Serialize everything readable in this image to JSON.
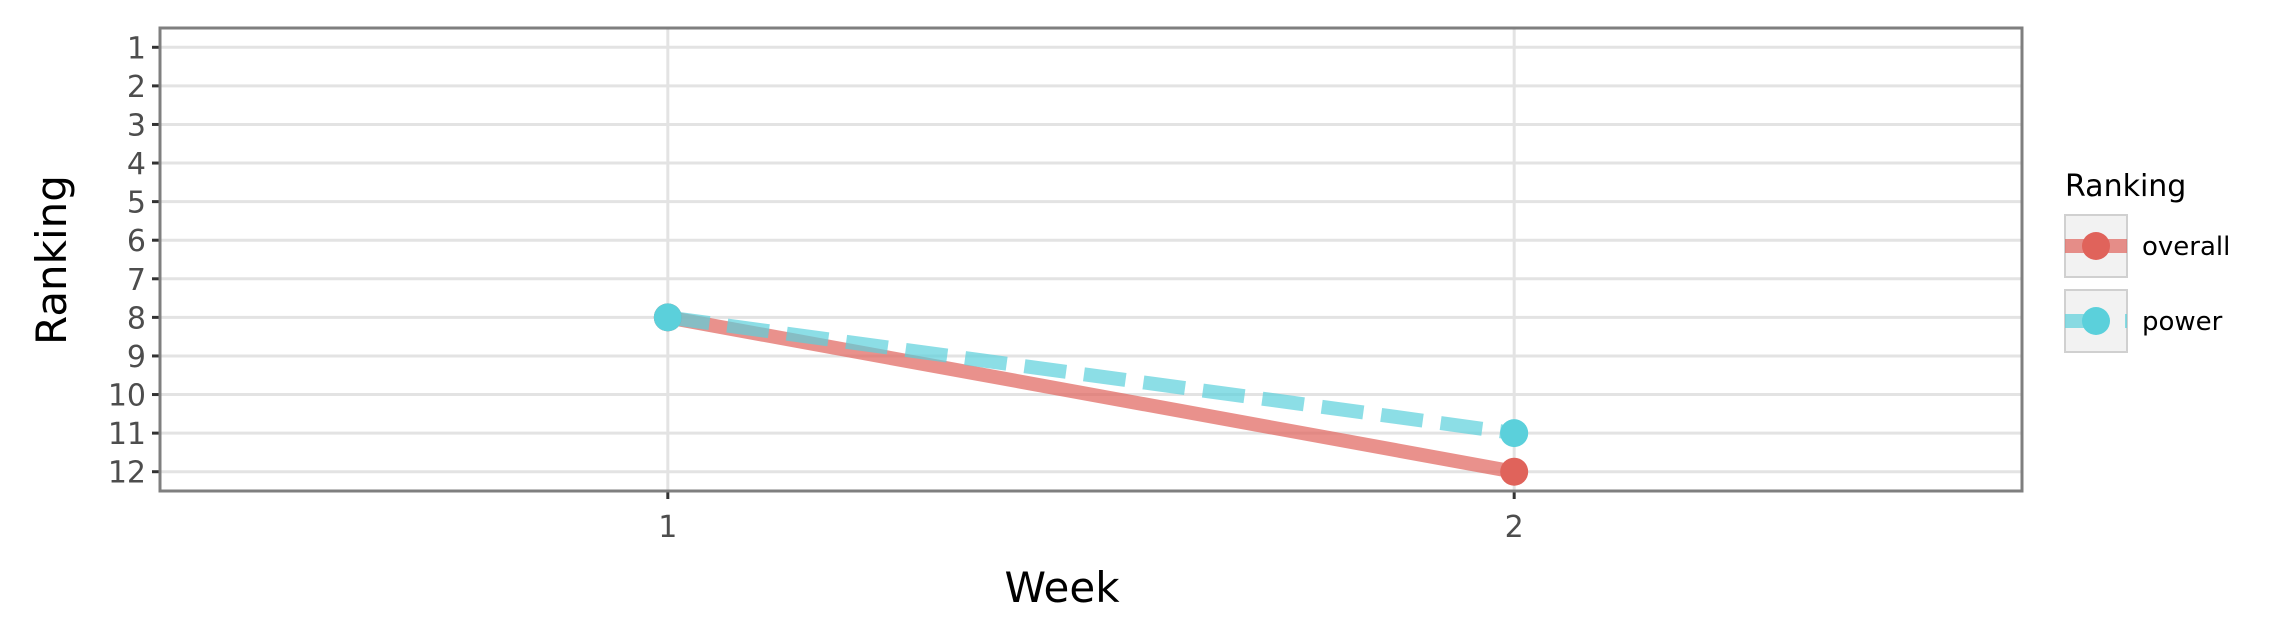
{
  "chart_data": {
    "type": "line",
    "title": "",
    "xlabel": "Week",
    "ylabel": "Ranking",
    "x": [
      1,
      2
    ],
    "xticks": [
      "1",
      "2"
    ],
    "xlim": [
      0.4,
      2.6
    ],
    "yticks": [
      "1",
      "2",
      "3",
      "4",
      "5",
      "6",
      "7",
      "8",
      "9",
      "10",
      "11",
      "12"
    ],
    "ylim": [
      12.5,
      0.5
    ],
    "y_reversed": true,
    "grid": true,
    "legend": {
      "title": "Ranking",
      "position": "right"
    },
    "series": [
      {
        "name": "overall",
        "values": [
          8,
          12
        ],
        "color": "#e0635b",
        "linestyle": "solid"
      },
      {
        "name": "power",
        "values": [
          8,
          11
        ],
        "color": "#5bd0db",
        "linestyle": "dashed"
      }
    ]
  }
}
